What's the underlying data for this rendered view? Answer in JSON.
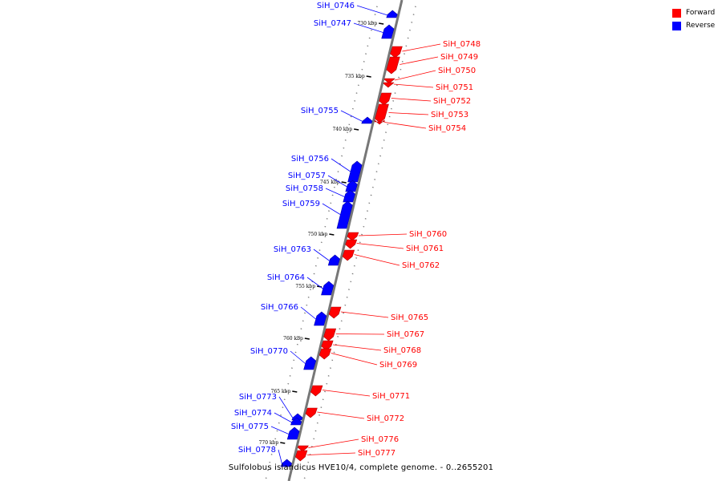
{
  "legend": {
    "items": [
      {
        "label": "Forward",
        "color": "#ff0000"
      },
      {
        "label": "Reverse",
        "color": "#0000ff"
      }
    ]
  },
  "caption": "Sulfolobus islandicus HVE10/4, complete genome. - 0..2655201",
  "scale_labels": [
    "730 kbp",
    "735 kbp",
    "740 kbp",
    "745 kbp",
    "750 kbp",
    "755 kbp",
    "760 kbp",
    "765 kbp",
    "770 kbp"
  ],
  "genes": [
    {
      "id": "SiH_0746",
      "strand": "reverse"
    },
    {
      "id": "SiH_0747",
      "strand": "reverse"
    },
    {
      "id": "SiH_0748",
      "strand": "forward"
    },
    {
      "id": "SiH_0749",
      "strand": "forward"
    },
    {
      "id": "SiH_0750",
      "strand": "forward"
    },
    {
      "id": "SiH_0751",
      "strand": "forward"
    },
    {
      "id": "SiH_0752",
      "strand": "forward"
    },
    {
      "id": "SiH_0753",
      "strand": "forward"
    },
    {
      "id": "SiH_0754",
      "strand": "forward"
    },
    {
      "id": "SiH_0755",
      "strand": "reverse"
    },
    {
      "id": "SiH_0756",
      "strand": "reverse"
    },
    {
      "id": "SiH_0757",
      "strand": "reverse"
    },
    {
      "id": "SiH_0758",
      "strand": "reverse"
    },
    {
      "id": "SiH_0759",
      "strand": "reverse"
    },
    {
      "id": "SiH_0760",
      "strand": "forward"
    },
    {
      "id": "SiH_0761",
      "strand": "forward"
    },
    {
      "id": "SiH_0762",
      "strand": "forward"
    },
    {
      "id": "SiH_0763",
      "strand": "reverse"
    },
    {
      "id": "SiH_0764",
      "strand": "reverse"
    },
    {
      "id": "SiH_0765",
      "strand": "forward"
    },
    {
      "id": "SiH_0766",
      "strand": "reverse"
    },
    {
      "id": "SiH_0767",
      "strand": "forward"
    },
    {
      "id": "SiH_0768",
      "strand": "forward"
    },
    {
      "id": "SiH_0769",
      "strand": "forward"
    },
    {
      "id": "SiH_0770",
      "strand": "reverse"
    },
    {
      "id": "SiH_0771",
      "strand": "forward"
    },
    {
      "id": "SiH_0772",
      "strand": "forward"
    },
    {
      "id": "SiH_0773",
      "strand": "reverse"
    },
    {
      "id": "SiH_0774",
      "strand": "reverse"
    },
    {
      "id": "SiH_0775",
      "strand": "reverse"
    },
    {
      "id": "SiH_0776",
      "strand": "forward"
    },
    {
      "id": "SiH_0777",
      "strand": "forward"
    },
    {
      "id": "SiH_0778",
      "strand": "reverse"
    }
  ]
}
